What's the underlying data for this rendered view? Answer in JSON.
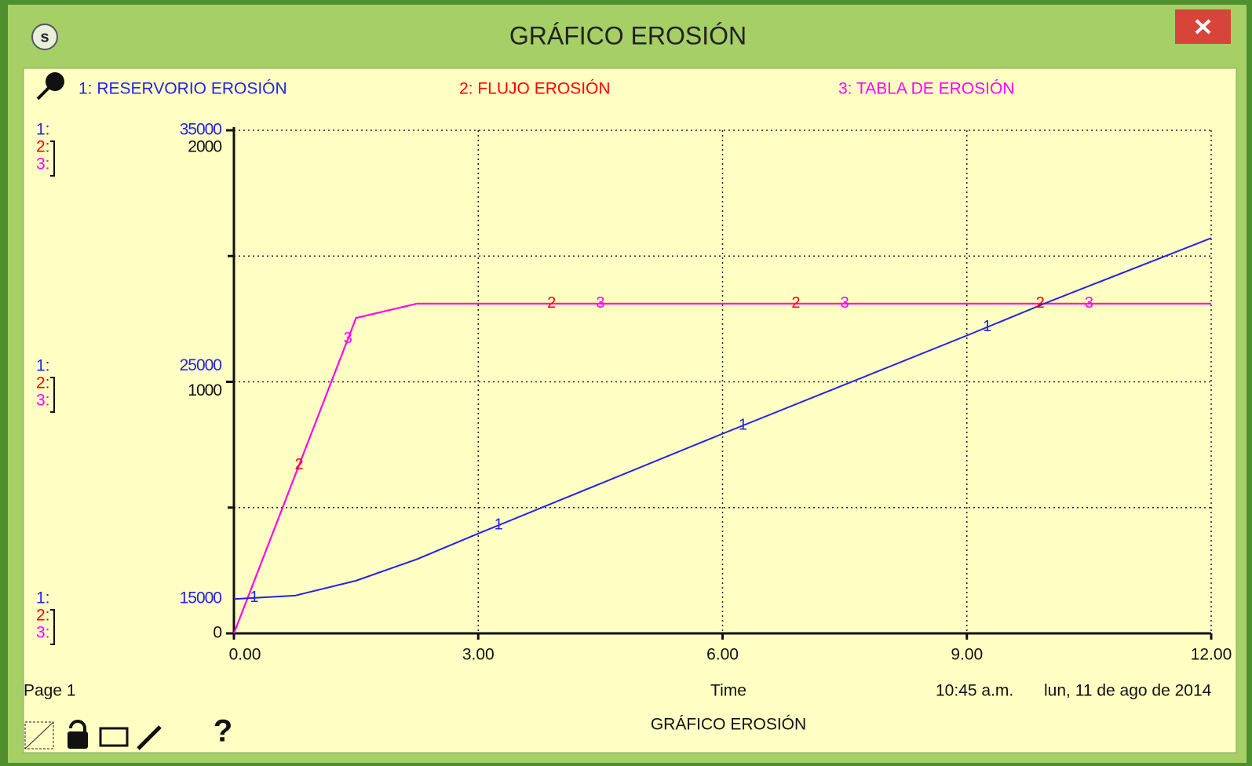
{
  "window": {
    "title": "GRÁFICO EROSIÓN",
    "badge": "s",
    "page": "Page 1",
    "time": "10:45 a.m.",
    "date": "lun, 11 de ago de 2014",
    "footer_title": "GRÁFICO EROSIÓN",
    "help": "?"
  },
  "chart_data": {
    "type": "line",
    "xlabel": "Time",
    "x": [
      0,
      0.75,
      1.5,
      2.25,
      3,
      6,
      9,
      10,
      12
    ],
    "series": [
      {
        "name": "1: RESERVORIO EROSIÓN",
        "key": "1:",
        "marker": "1",
        "color": "#2323e6",
        "axis": "y",
        "values": [
          16365,
          16500,
          17095,
          17952,
          18968,
          22937,
          26841,
          28175,
          30714
        ]
      },
      {
        "name": "2: FLUJO EROSIÓN",
        "key": "2:",
        "marker": "2",
        "color": "#ff0000",
        "axis": "y2",
        "values": [
          0,
          627,
          1254,
          1311,
          1311,
          1311,
          1311,
          1311,
          1311
        ]
      },
      {
        "name": "3: TABLA DE EROSIÓN",
        "key": "3:",
        "marker": "3",
        "color": "#ff00ff",
        "axis": "y2",
        "values": [
          0,
          627,
          1254,
          1311,
          1311,
          1311,
          1311,
          1311,
          1311
        ]
      }
    ],
    "xlim": [
      0,
      12
    ],
    "xticks": [
      {
        "value": 0,
        "label": "0.00"
      },
      {
        "value": 3,
        "label": "3.00"
      },
      {
        "value": 6,
        "label": "6.00"
      },
      {
        "value": 9,
        "label": "9.00"
      },
      {
        "value": 12,
        "label": "12.00"
      }
    ],
    "ylim": [
      15000,
      35000
    ],
    "yticks": [
      15000,
      25000,
      35000
    ],
    "y2lim": [
      0,
      2000
    ],
    "y2ticks": [
      0,
      1000,
      2000
    ],
    "ydivisions": 4,
    "grid": true
  }
}
